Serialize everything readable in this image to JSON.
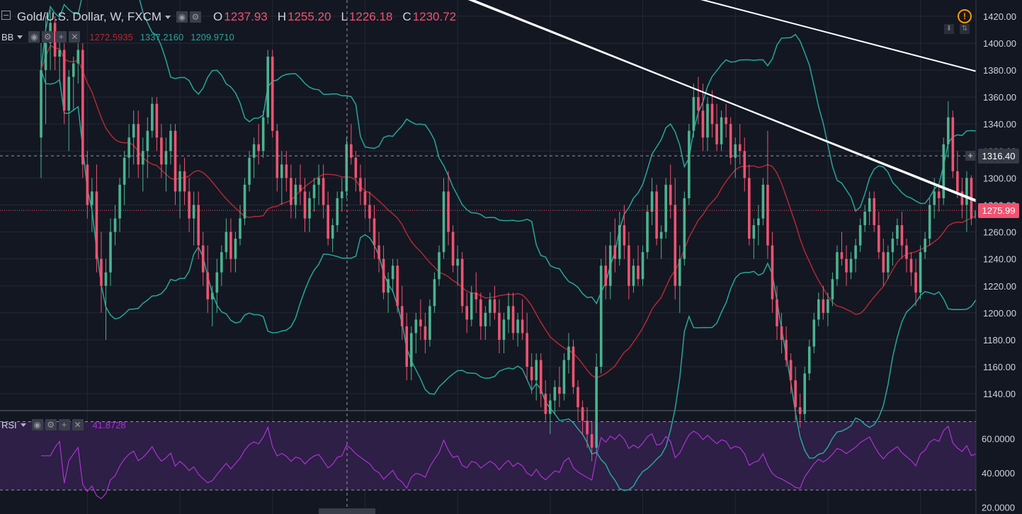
{
  "header": {
    "symbol": "Gold/U.S. Dollar, W, FXCM",
    "open_label": "O",
    "open_value": "1237.93",
    "high_label": "H",
    "high_value": "1255.20",
    "low_label": "L",
    "low_value": "1226.18",
    "close_label": "C",
    "close_value": "1230.72"
  },
  "indicators": {
    "bb": {
      "name": "BB",
      "basis": "1272.5935",
      "upper": "1337.2160",
      "lower": "1209.9710"
    },
    "rsi": {
      "name": "RSI",
      "value": "41.8728"
    }
  },
  "price_labels": {
    "crosshair": "1316.40",
    "last": "1275.99",
    "crosshair_button": "+"
  },
  "icons": {
    "collapse": "collapse-icon",
    "settings": "gear-icon",
    "eye": "eye-icon",
    "add": "plus-icon",
    "close": "close-icon",
    "alert": "warning-icon",
    "download": "arrow-down-icon",
    "scale": "scale-icon",
    "caret": "caret-down-icon"
  },
  "colors": {
    "background": "#131722",
    "up": "#4bb38f",
    "down": "#ef5370",
    "bb_band": "#26a69a",
    "bb_basis": "#b22833",
    "rsi_line": "#b030d6",
    "rsi_band": "#2d1f46",
    "trendline": "#ffffff",
    "last_price": "#ef5370"
  },
  "chart_data": [
    {
      "type": "candlestick",
      "title": "Gold/U.S. Dollar, W, FXCM",
      "ylim": [
        1128,
        1432
      ],
      "y_ticks": [
        1140,
        1160,
        1180,
        1200,
        1220,
        1240,
        1260,
        1280,
        1300,
        1320,
        1340,
        1360,
        1380,
        1400,
        1420
      ],
      "grid": true,
      "last_price": 1275.99,
      "crosshair_price": 1316.4,
      "overlays": [
        "Bollinger Bands upper",
        "Bollinger Bands basis",
        "Bollinger Bands lower"
      ],
      "trendlines": [
        {
          "from": [
            72,
            1460
          ],
          "to": [
            249,
            1220
          ]
        },
        {
          "from": [
            73,
            1460
          ],
          "to": [
            249,
            1218
          ]
        },
        {
          "from": [
            123,
            1450
          ],
          "to": [
            249,
            1337
          ]
        }
      ],
      "candles": [
        [
          1330,
          1400,
          1300,
          1380
        ],
        [
          1380,
          1420,
          1340,
          1400
        ],
        [
          1400,
          1425,
          1380,
          1415
        ],
        [
          1415,
          1420,
          1380,
          1390
        ],
        [
          1390,
          1405,
          1370,
          1395
        ],
        [
          1395,
          1400,
          1340,
          1350
        ],
        [
          1350,
          1380,
          1320,
          1375
        ],
        [
          1375,
          1390,
          1350,
          1385
        ],
        [
          1385,
          1400,
          1370,
          1395
        ],
        [
          1395,
          1400,
          1300,
          1310
        ],
        [
          1310,
          1320,
          1270,
          1280
        ],
        [
          1280,
          1300,
          1260,
          1290
        ],
        [
          1290,
          1310,
          1230,
          1240
        ],
        [
          1240,
          1260,
          1200,
          1220
        ],
        [
          1220,
          1240,
          1180,
          1230
        ],
        [
          1230,
          1270,
          1220,
          1260
        ],
        [
          1260,
          1280,
          1250,
          1270
        ],
        [
          1270,
          1300,
          1260,
          1295
        ],
        [
          1295,
          1320,
          1280,
          1315
        ],
        [
          1315,
          1340,
          1300,
          1330
        ],
        [
          1330,
          1350,
          1310,
          1340
        ],
        [
          1340,
          1350,
          1300,
          1310
        ],
        [
          1310,
          1330,
          1290,
          1320
        ],
        [
          1320,
          1345,
          1300,
          1335
        ],
        [
          1335,
          1360,
          1330,
          1355
        ],
        [
          1355,
          1360,
          1320,
          1330
        ],
        [
          1330,
          1340,
          1300,
          1310
        ],
        [
          1310,
          1330,
          1290,
          1320
        ],
        [
          1320,
          1340,
          1310,
          1335
        ],
        [
          1335,
          1340,
          1280,
          1290
        ],
        [
          1290,
          1310,
          1270,
          1305
        ],
        [
          1305,
          1315,
          1280,
          1290
        ],
        [
          1290,
          1300,
          1260,
          1270
        ],
        [
          1270,
          1290,
          1250,
          1280
        ],
        [
          1280,
          1290,
          1240,
          1250
        ],
        [
          1250,
          1260,
          1220,
          1230
        ],
        [
          1230,
          1250,
          1200,
          1210
        ],
        [
          1210,
          1220,
          1190,
          1215
        ],
        [
          1215,
          1240,
          1200,
          1230
        ],
        [
          1230,
          1250,
          1220,
          1245
        ],
        [
          1245,
          1270,
          1240,
          1260
        ],
        [
          1260,
          1270,
          1230,
          1240
        ],
        [
          1240,
          1260,
          1230,
          1255
        ],
        [
          1255,
          1280,
          1250,
          1270
        ],
        [
          1270,
          1300,
          1265,
          1295
        ],
        [
          1295,
          1320,
          1290,
          1315
        ],
        [
          1315,
          1330,
          1300,
          1325
        ],
        [
          1325,
          1340,
          1310,
          1320
        ],
        [
          1320,
          1350,
          1315,
          1345
        ],
        [
          1345,
          1395,
          1340,
          1390
        ],
        [
          1390,
          1395,
          1330,
          1335
        ],
        [
          1335,
          1340,
          1290,
          1300
        ],
        [
          1300,
          1320,
          1280,
          1310
        ],
        [
          1310,
          1320,
          1290,
          1300
        ],
        [
          1300,
          1310,
          1270,
          1280
        ],
        [
          1280,
          1300,
          1270,
          1295
        ],
        [
          1295,
          1310,
          1280,
          1290
        ],
        [
          1290,
          1300,
          1260,
          1270
        ],
        [
          1270,
          1290,
          1260,
          1285
        ],
        [
          1285,
          1300,
          1275,
          1295
        ],
        [
          1295,
          1310,
          1280,
          1300
        ],
        [
          1300,
          1310,
          1270,
          1280
        ],
        [
          1280,
          1290,
          1250,
          1255
        ],
        [
          1255,
          1270,
          1245,
          1265
        ],
        [
          1265,
          1290,
          1260,
          1285
        ],
        [
          1285,
          1300,
          1275,
          1290
        ],
        [
          1290,
          1330,
          1285,
          1325
        ],
        [
          1325,
          1340,
          1310,
          1315
        ],
        [
          1315,
          1320,
          1290,
          1300
        ],
        [
          1300,
          1310,
          1280,
          1290
        ],
        [
          1290,
          1300,
          1270,
          1280
        ],
        [
          1280,
          1290,
          1260,
          1270
        ],
        [
          1270,
          1280,
          1240,
          1250
        ],
        [
          1250,
          1260,
          1230,
          1240
        ],
        [
          1240,
          1250,
          1210,
          1215
        ],
        [
          1215,
          1230,
          1200,
          1225
        ],
        [
          1225,
          1240,
          1215,
          1235
        ],
        [
          1235,
          1240,
          1200,
          1205
        ],
        [
          1205,
          1220,
          1180,
          1190
        ],
        [
          1190,
          1200,
          1150,
          1160
        ],
        [
          1160,
          1190,
          1150,
          1185
        ],
        [
          1185,
          1200,
          1170,
          1195
        ],
        [
          1195,
          1210,
          1180,
          1190
        ],
        [
          1190,
          1200,
          1170,
          1180
        ],
        [
          1180,
          1210,
          1175,
          1205
        ],
        [
          1205,
          1230,
          1200,
          1225
        ],
        [
          1225,
          1250,
          1220,
          1245
        ],
        [
          1245,
          1300,
          1240,
          1290
        ],
        [
          1290,
          1305,
          1250,
          1260
        ],
        [
          1260,
          1265,
          1230,
          1235
        ],
        [
          1235,
          1250,
          1220,
          1240
        ],
        [
          1240,
          1245,
          1200,
          1205
        ],
        [
          1205,
          1215,
          1185,
          1195
        ],
        [
          1195,
          1220,
          1190,
          1215
        ],
        [
          1215,
          1230,
          1200,
          1210
        ],
        [
          1210,
          1215,
          1180,
          1190
        ],
        [
          1190,
          1205,
          1180,
          1200
        ],
        [
          1200,
          1215,
          1190,
          1210
        ],
        [
          1210,
          1220,
          1195,
          1200
        ],
        [
          1200,
          1210,
          1170,
          1180
        ],
        [
          1180,
          1200,
          1170,
          1195
        ],
        [
          1195,
          1215,
          1185,
          1205
        ],
        [
          1205,
          1215,
          1180,
          1185
        ],
        [
          1185,
          1200,
          1175,
          1195
        ],
        [
          1195,
          1210,
          1180,
          1185
        ],
        [
          1185,
          1200,
          1150,
          1160
        ],
        [
          1160,
          1170,
          1140,
          1150
        ],
        [
          1150,
          1170,
          1135,
          1165
        ],
        [
          1165,
          1170,
          1130,
          1140
        ],
        [
          1140,
          1150,
          1120,
          1125
        ],
        [
          1125,
          1140,
          1110,
          1135
        ],
        [
          1135,
          1150,
          1125,
          1145
        ],
        [
          1145,
          1160,
          1130,
          1140
        ],
        [
          1140,
          1170,
          1135,
          1165
        ],
        [
          1165,
          1185,
          1155,
          1175
        ],
        [
          1175,
          1180,
          1140,
          1145
        ],
        [
          1145,
          1150,
          1120,
          1130
        ],
        [
          1130,
          1135,
          1110,
          1120
        ],
        [
          1120,
          1130,
          1100,
          1110
        ],
        [
          1110,
          1120,
          1090,
          1100
        ],
        [
          1100,
          1170,
          1095,
          1160
        ],
        [
          1160,
          1240,
          1155,
          1235
        ],
        [
          1235,
          1250,
          1210,
          1220
        ],
        [
          1220,
          1260,
          1210,
          1250
        ],
        [
          1250,
          1270,
          1230,
          1240
        ],
        [
          1240,
          1275,
          1235,
          1265
        ],
        [
          1265,
          1280,
          1240,
          1250
        ],
        [
          1250,
          1260,
          1210,
          1220
        ],
        [
          1220,
          1240,
          1215,
          1235
        ],
        [
          1235,
          1250,
          1220,
          1225
        ],
        [
          1225,
          1250,
          1220,
          1245
        ],
        [
          1245,
          1280,
          1240,
          1275
        ],
        [
          1275,
          1300,
          1265,
          1290
        ],
        [
          1290,
          1295,
          1250,
          1255
        ],
        [
          1255,
          1265,
          1240,
          1260
        ],
        [
          1260,
          1300,
          1255,
          1295
        ],
        [
          1295,
          1310,
          1270,
          1280
        ],
        [
          1280,
          1300,
          1210,
          1220
        ],
        [
          1220,
          1250,
          1200,
          1240
        ],
        [
          1240,
          1290,
          1235,
          1285
        ],
        [
          1285,
          1340,
          1280,
          1335
        ],
        [
          1335,
          1370,
          1330,
          1360
        ],
        [
          1360,
          1375,
          1340,
          1350
        ],
        [
          1350,
          1370,
          1320,
          1330
        ],
        [
          1330,
          1360,
          1320,
          1355
        ],
        [
          1355,
          1365,
          1330,
          1340
        ],
        [
          1340,
          1355,
          1320,
          1325
        ],
        [
          1325,
          1350,
          1320,
          1345
        ],
        [
          1345,
          1355,
          1330,
          1340
        ],
        [
          1340,
          1345,
          1310,
          1315
        ],
        [
          1315,
          1330,
          1300,
          1325
        ],
        [
          1325,
          1340,
          1310,
          1320
        ],
        [
          1320,
          1330,
          1290,
          1300
        ],
        [
          1300,
          1310,
          1250,
          1255
        ],
        [
          1255,
          1270,
          1240,
          1265
        ],
        [
          1265,
          1280,
          1250,
          1270
        ],
        [
          1270,
          1300,
          1265,
          1295
        ],
        [
          1295,
          1335,
          1240,
          1250
        ],
        [
          1250,
          1260,
          1200,
          1210
        ],
        [
          1210,
          1220,
          1180,
          1190
        ],
        [
          1190,
          1200,
          1170,
          1180
        ],
        [
          1180,
          1190,
          1160,
          1165
        ],
        [
          1165,
          1170,
          1140,
          1150
        ],
        [
          1150,
          1160,
          1120,
          1130
        ],
        [
          1130,
          1140,
          1115,
          1125
        ],
        [
          1125,
          1160,
          1120,
          1155
        ],
        [
          1155,
          1180,
          1150,
          1175
        ],
        [
          1175,
          1200,
          1170,
          1195
        ],
        [
          1195,
          1215,
          1190,
          1210
        ],
        [
          1210,
          1220,
          1195,
          1200
        ],
        [
          1200,
          1215,
          1190,
          1210
        ],
        [
          1210,
          1230,
          1205,
          1225
        ],
        [
          1225,
          1250,
          1220,
          1245
        ],
        [
          1245,
          1260,
          1235,
          1240
        ],
        [
          1240,
          1250,
          1220,
          1230
        ],
        [
          1230,
          1245,
          1225,
          1240
        ],
        [
          1240,
          1255,
          1230,
          1250
        ],
        [
          1250,
          1270,
          1245,
          1265
        ],
        [
          1265,
          1280,
          1260,
          1275
        ],
        [
          1275,
          1290,
          1265,
          1285
        ],
        [
          1285,
          1290,
          1260,
          1265
        ],
        [
          1265,
          1275,
          1240,
          1245
        ],
        [
          1245,
          1255,
          1220,
          1230
        ],
        [
          1230,
          1250,
          1225,
          1245
        ],
        [
          1245,
          1260,
          1235,
          1255
        ],
        [
          1255,
          1270,
          1250,
          1265
        ],
        [
          1265,
          1275,
          1240,
          1250
        ],
        [
          1250,
          1255,
          1230,
          1240
        ],
        [
          1240,
          1245,
          1220,
          1230
        ],
        [
          1230,
          1240,
          1205,
          1215
        ],
        [
          1215,
          1250,
          1210,
          1245
        ],
        [
          1245,
          1260,
          1240,
          1255
        ],
        [
          1255,
          1285,
          1250,
          1280
        ],
        [
          1280,
          1300,
          1270,
          1290
        ],
        [
          1290,
          1295,
          1275,
          1285
        ],
        [
          1285,
          1330,
          1280,
          1325
        ],
        [
          1325,
          1357,
          1315,
          1345
        ],
        [
          1345,
          1350,
          1300,
          1305
        ],
        [
          1305,
          1320,
          1285,
          1290
        ],
        [
          1290,
          1300,
          1270,
          1280
        ],
        [
          1280,
          1305,
          1260,
          1300
        ],
        [
          1300,
          1302,
          1265,
          1270
        ],
        [
          1270,
          1285,
          1268,
          1276
        ]
      ]
    },
    {
      "type": "line",
      "title": "RSI",
      "ylim": [
        16,
        76
      ],
      "y_ticks": [
        20,
        40,
        60
      ],
      "bands": [
        30,
        70
      ],
      "last_value": 41.8728
    }
  ]
}
